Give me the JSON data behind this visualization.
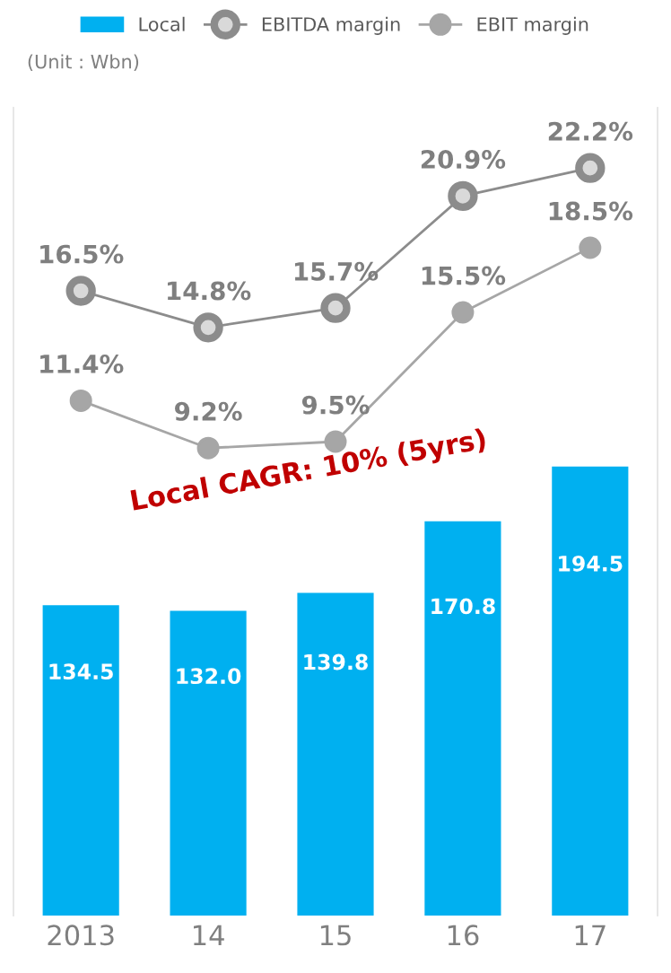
{
  "chart_data": {
    "type": "bar",
    "categories": [
      "2013",
      "14",
      "15",
      "16",
      "17"
    ],
    "series": [
      {
        "name": "Local",
        "color": "#00b0f0",
        "values": [
          134.5,
          132.0,
          139.8,
          170.8,
          194.5
        ],
        "value_labels": [
          "134.5",
          "132.0",
          "139.8",
          "170.8",
          "194.5"
        ]
      },
      {
        "name": "EBITDA margin",
        "type": "line",
        "axis": "y2",
        "color": "#8c8c8c",
        "marker": "circle",
        "values": [
          16.5,
          14.8,
          15.7,
          20.9,
          22.2
        ],
        "value_labels": [
          "16.5%",
          "14.8%",
          "15.7%",
          "20.9%",
          "22.2%"
        ]
      },
      {
        "name": "EBIT margin",
        "type": "line",
        "axis": "y2",
        "color": "#a6a6a6",
        "marker": "circle",
        "values": [
          11.4,
          9.2,
          9.5,
          15.5,
          18.5
        ],
        "value_labels": [
          "11.4%",
          "9.2%",
          "9.5%",
          "15.5%",
          "18.5%"
        ]
      }
    ],
    "ylim": [
      0,
      350
    ],
    "y2lim": [
      -12.5,
      25
    ],
    "tick_labels": "x",
    "data_labels": true,
    "legend": "top",
    "grid": false,
    "line_style": "solid",
    "annotations": [
      "(Unit : Wbn)",
      "Local CAGR: 10% (5yrs)"
    ]
  }
}
